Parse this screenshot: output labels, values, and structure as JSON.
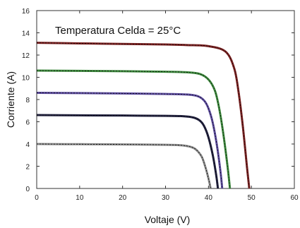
{
  "chart_data": {
    "type": "line",
    "annotation": "Temperatura Celda = 25°C",
    "xlabel": "Voltaje (V)",
    "ylabel": "Corriente (A)",
    "xlim": [
      0,
      60
    ],
    "ylim": [
      0,
      16
    ],
    "x_ticks": [
      0,
      10,
      20,
      30,
      40,
      50,
      60
    ],
    "y_ticks": [
      0,
      2,
      4,
      6,
      8,
      10,
      12,
      14,
      16
    ],
    "grid": false,
    "legend": "none",
    "series": [
      {
        "color": "#7a1f1f",
        "x": [
          0,
          10,
          20,
          30,
          35,
          40,
          44,
          46,
          47,
          48,
          49,
          49.5
        ],
        "y": [
          13.1,
          13.05,
          13.0,
          12.95,
          12.9,
          12.8,
          12.3,
          10.8,
          8.7,
          5.6,
          1.8,
          0
        ]
      },
      {
        "color": "#3c8a3c",
        "x": [
          0,
          10,
          20,
          30,
          35,
          38,
          40,
          41.5,
          42.5,
          43.5,
          44.5,
          45
        ],
        "y": [
          10.6,
          10.58,
          10.55,
          10.5,
          10.45,
          10.3,
          9.8,
          8.8,
          7.2,
          4.8,
          1.8,
          0
        ]
      },
      {
        "color": "#5b4a9e",
        "x": [
          0,
          10,
          20,
          30,
          35,
          37.5,
          39,
          40,
          41,
          42,
          42.8,
          43.2
        ],
        "y": [
          8.6,
          8.58,
          8.55,
          8.5,
          8.45,
          8.3,
          7.9,
          7.2,
          5.9,
          3.8,
          1.5,
          0
        ]
      },
      {
        "color": "#1e1e3c",
        "x": [
          0,
          10,
          20,
          30,
          34,
          36.5,
          38,
          39,
          40,
          41,
          41.8,
          42.2
        ],
        "y": [
          6.6,
          6.58,
          6.56,
          6.53,
          6.5,
          6.38,
          6.1,
          5.6,
          4.6,
          3.0,
          1.2,
          0
        ]
      },
      {
        "color": "#8a8a8a",
        "x": [
          0,
          10,
          20,
          30,
          33,
          35,
          36.5,
          37.5,
          38.5,
          39.3,
          40,
          40.5
        ],
        "y": [
          4.0,
          3.98,
          3.96,
          3.93,
          3.9,
          3.82,
          3.65,
          3.35,
          2.8,
          1.9,
          0.9,
          0
        ]
      }
    ]
  }
}
